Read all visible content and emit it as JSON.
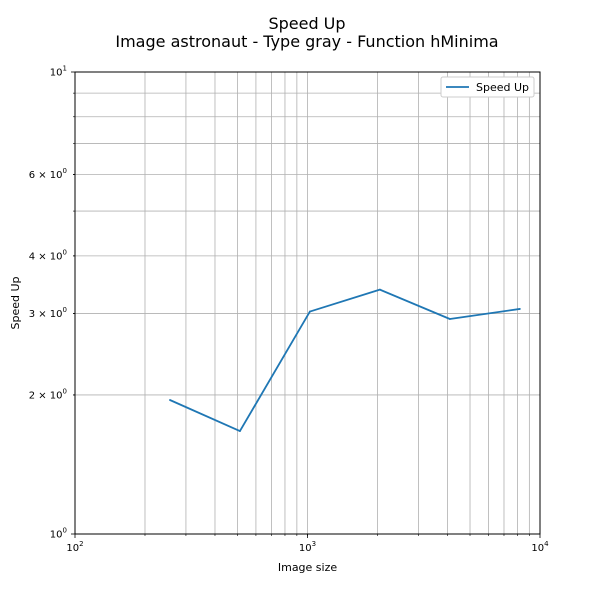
{
  "chart_data": {
    "type": "line",
    "title": "Speed Up",
    "subtitle": "Image astronaut - Type gray - Function hMinima",
    "xlabel": "Image size",
    "ylabel": "Speed Up",
    "xscale": "log",
    "yscale": "log",
    "xlim": [
      100,
      10000
    ],
    "ylim": [
      1,
      10
    ],
    "grid": "on (major and minor)",
    "legend_position": "top-right",
    "x_tick_labels": [
      {
        "value": 100,
        "base": "10",
        "exp": "2"
      },
      {
        "value": 1000,
        "base": "10",
        "exp": "3"
      },
      {
        "value": 10000,
        "base": "10",
        "exp": "4"
      }
    ],
    "y_tick_labels": [
      {
        "value": 1,
        "base": "10",
        "exp": "0",
        "prefix": ""
      },
      {
        "value": 2,
        "base": "10",
        "exp": "0",
        "prefix": "2 × "
      },
      {
        "value": 3,
        "base": "10",
        "exp": "0",
        "prefix": "3 × "
      },
      {
        "value": 4,
        "base": "10",
        "exp": "0",
        "prefix": "4 × "
      },
      {
        "value": 6,
        "base": "10",
        "exp": "0",
        "prefix": "6 × "
      },
      {
        "value": 10,
        "base": "10",
        "exp": "1",
        "prefix": ""
      }
    ],
    "series": [
      {
        "name": "Speed Up",
        "color": "#1f77b4",
        "x": [
          256,
          512,
          1024,
          2048,
          4096,
          8192
        ],
        "y": [
          1.95,
          1.67,
          3.03,
          3.38,
          2.92,
          3.07
        ]
      }
    ]
  }
}
